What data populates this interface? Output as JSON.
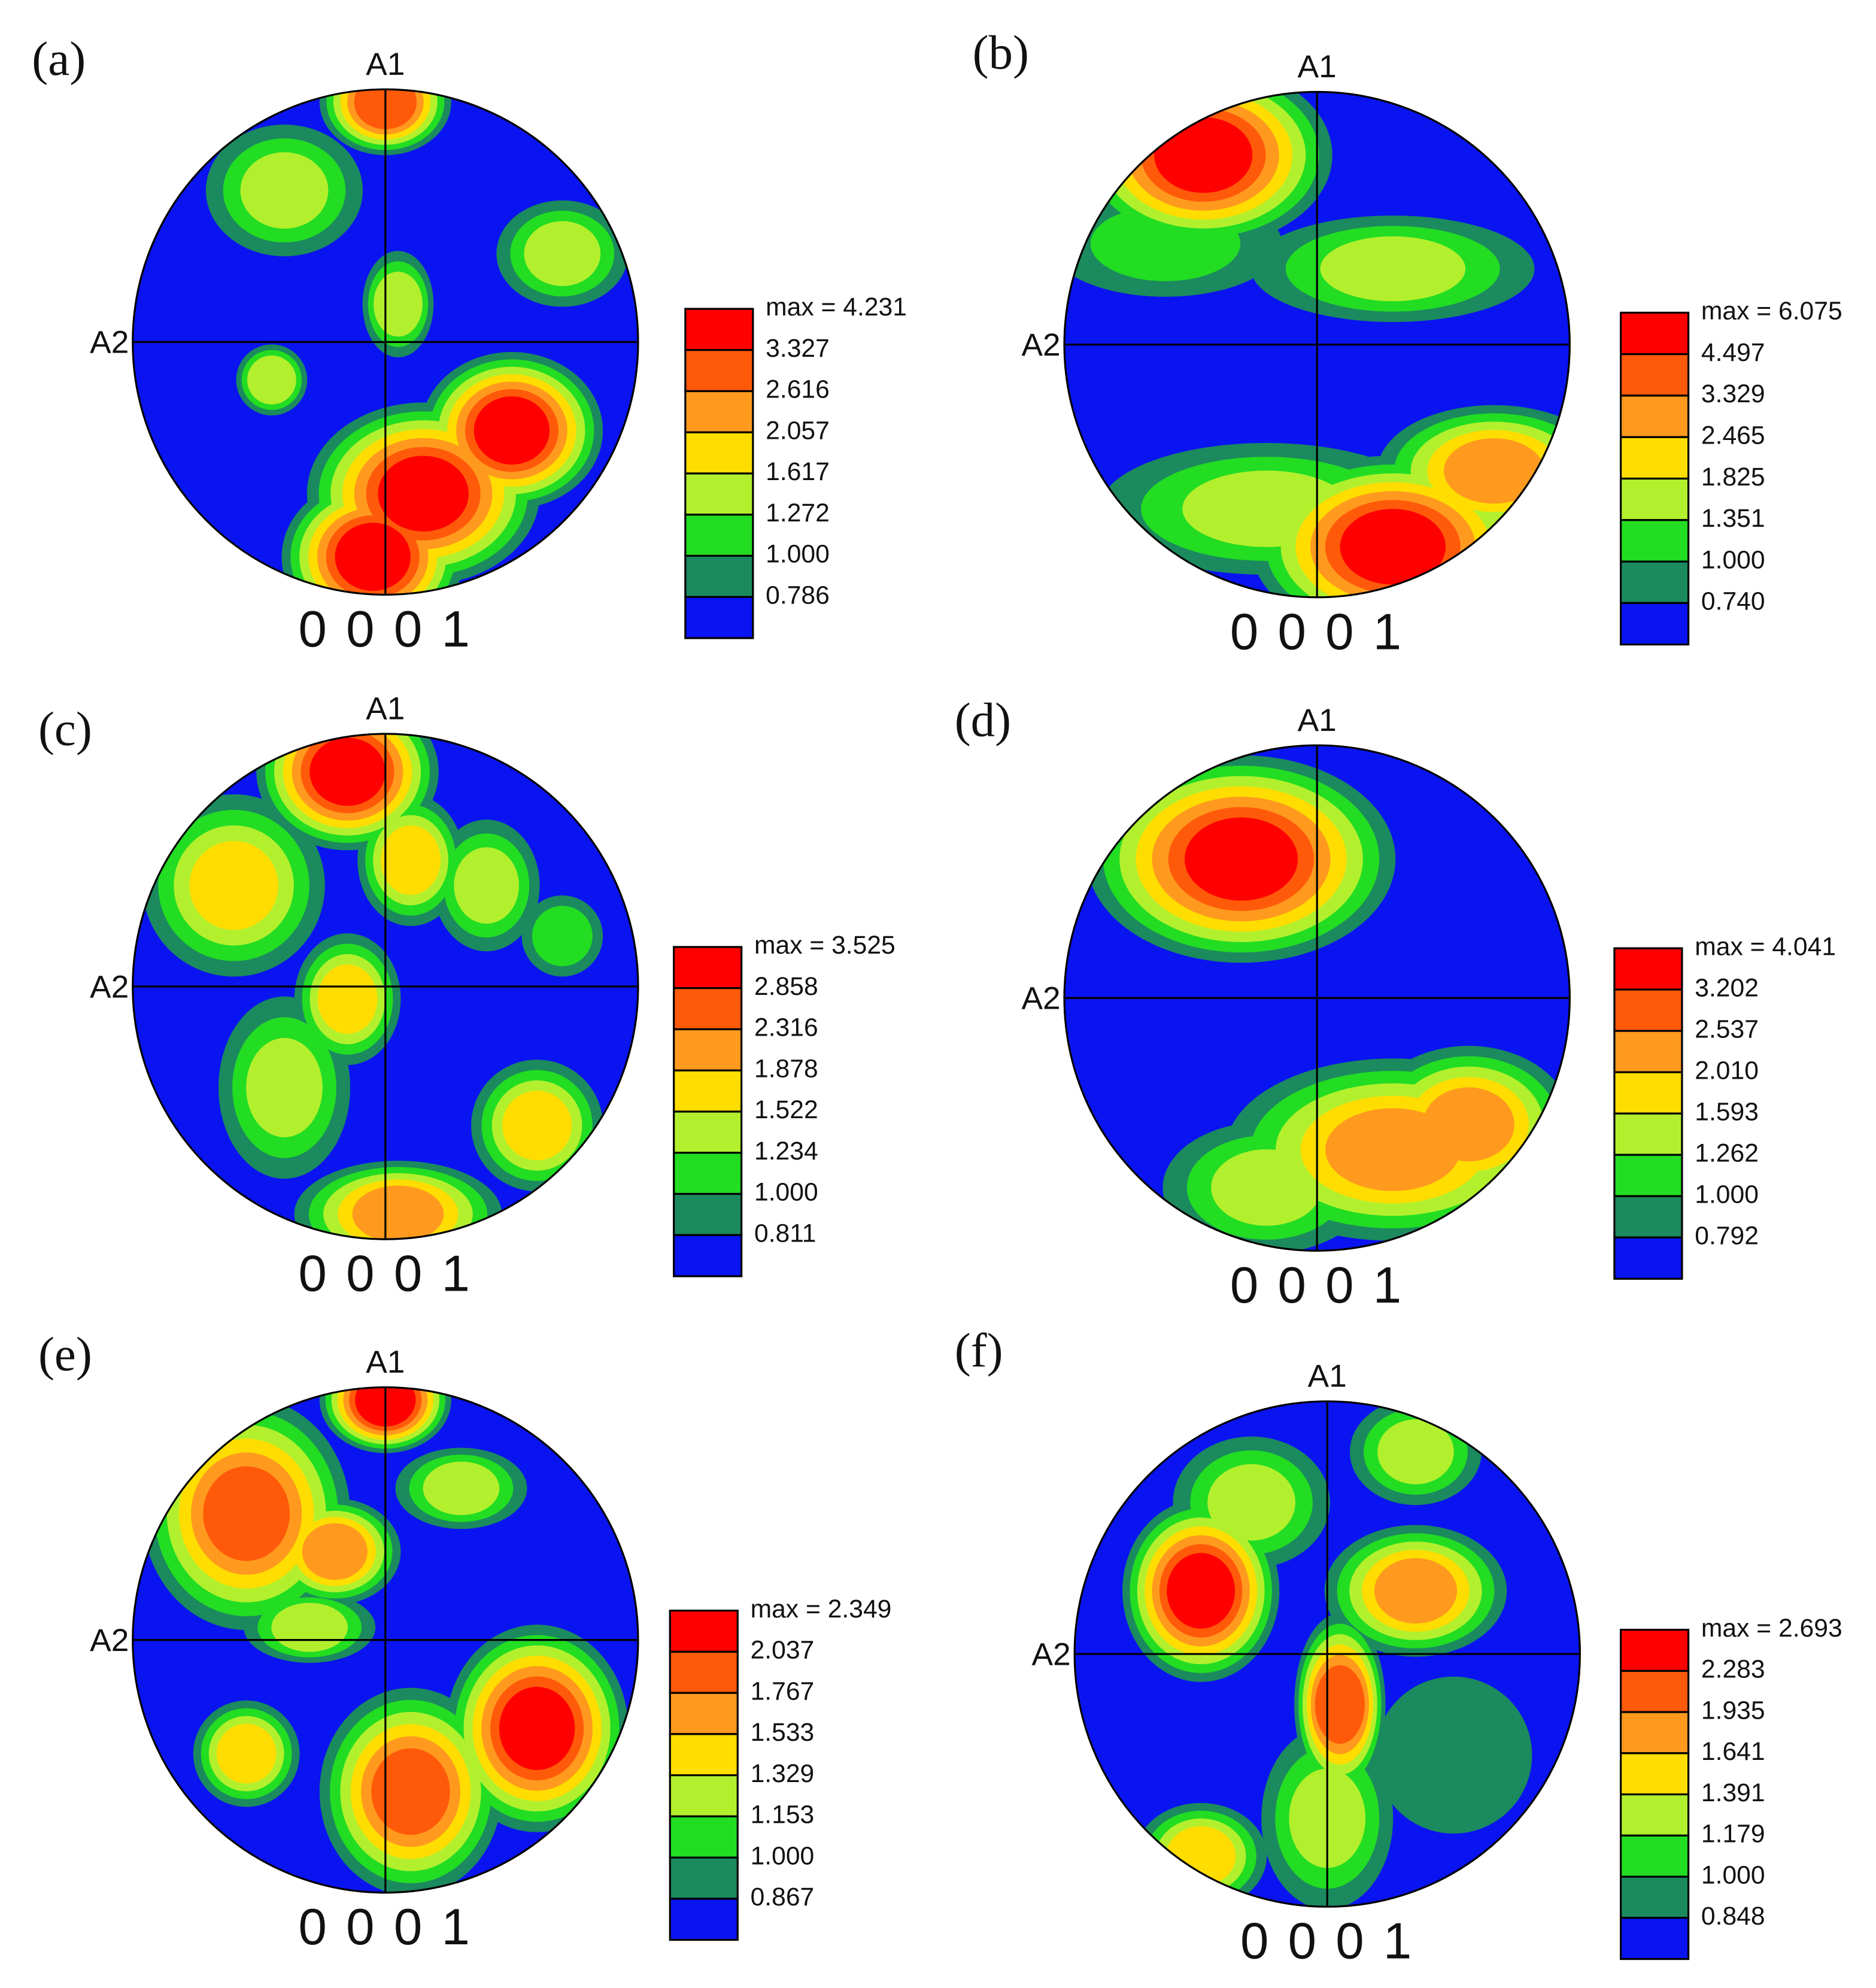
{
  "panels": [
    {
      "label": "(a)",
      "top_axis": "A1",
      "left_axis": "A2",
      "pole": "0 0 0 1",
      "legend_max": "max = 4.231",
      "legend_levels": [
        "3.327",
        "2.616",
        "2.057",
        "1.617",
        "1.272",
        "1.000",
        "0.786"
      ]
    },
    {
      "label": "(b)",
      "top_axis": "A1",
      "left_axis": "A2",
      "pole": "0 0 0 1",
      "legend_max": "max = 6.075",
      "legend_levels": [
        "4.497",
        "3.329",
        "2.465",
        "1.825",
        "1.351",
        "1.000",
        "0.740"
      ]
    },
    {
      "label": "(c)",
      "top_axis": "A1",
      "left_axis": "A2",
      "pole": "0 0 0 1",
      "legend_max": "max = 3.525",
      "legend_levels": [
        "2.858",
        "2.316",
        "1.878",
        "1.522",
        "1.234",
        "1.000",
        "0.811"
      ]
    },
    {
      "label": "(d)",
      "top_axis": "A1",
      "left_axis": "A2",
      "pole": "0 0 0 1",
      "legend_max": "max = 4.041",
      "legend_levels": [
        "3.202",
        "2.537",
        "2.010",
        "1.593",
        "1.262",
        "1.000",
        "0.792"
      ]
    },
    {
      "label": "(e)",
      "top_axis": "A1",
      "left_axis": "A2",
      "pole": "0 0 0 1",
      "legend_max": "max = 2.349",
      "legend_levels": [
        "2.037",
        "1.767",
        "1.533",
        "1.329",
        "1.153",
        "1.000",
        "0.867"
      ]
    },
    {
      "label": "(f)",
      "top_axis": "A1",
      "left_axis": "A2",
      "pole": "0 0 0 1",
      "legend_max": "max = 2.693",
      "legend_levels": [
        "2.283",
        "1.935",
        "1.641",
        "1.391",
        "1.179",
        "1.000",
        "0.848"
      ]
    }
  ]
}
